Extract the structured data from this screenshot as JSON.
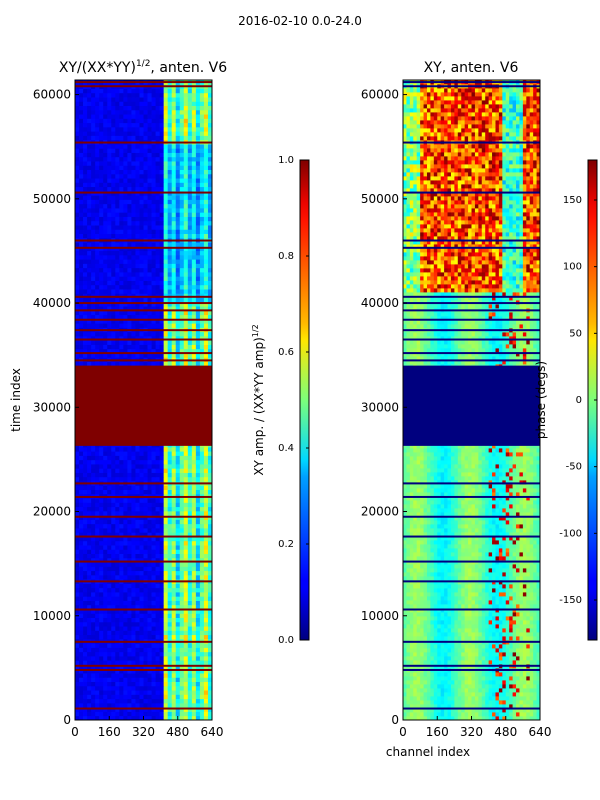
{
  "figure": {
    "suptitle": "2016-02-10 0.0-24.0"
  },
  "chart_data": [
    {
      "type": "heatmap",
      "title": "XY/(XX*YY)",
      "title_sup": "1/2",
      "title_suffix": ", anten. V6",
      "xlabel": "",
      "ylabel": "time index",
      "xlim": [
        0,
        640
      ],
      "ylim": [
        0,
        61400
      ],
      "xticks": [
        "0",
        "160",
        "320",
        "480",
        "640"
      ],
      "yticks": [
        "0",
        "10000",
        "20000",
        "30000",
        "40000",
        "50000",
        "60000"
      ],
      "colormap": "jet",
      "colorbar": {
        "label": "XY amp. / (XX*YY amp)",
        "label_sup": "1/2",
        "range": [
          0.0,
          1.0
        ],
        "ticks": [
          "0.0",
          "0.2",
          "0.4",
          "0.6",
          "0.8",
          "1.0"
        ]
      },
      "flagged_time_ranges": [
        [
          26300,
          34000
        ]
      ],
      "flag_lines_time_index": [
        1100,
        4800,
        5200,
        7500,
        10600,
        13300,
        15200,
        17600,
        19500,
        21400,
        22700,
        34500,
        35200,
        36500,
        37400,
        38400,
        39300,
        40000,
        40600,
        45300,
        46000,
        50600,
        55400,
        60800,
        61200
      ],
      "bright_channel_band": [
        415,
        640
      ]
    },
    {
      "type": "heatmap",
      "title": "XY, anten. V6",
      "xlabel": "channel index",
      "ylabel": "",
      "xlim": [
        0,
        640
      ],
      "ylim": [
        0,
        61400
      ],
      "xticks": [
        "0",
        "160",
        "320",
        "480",
        "640"
      ],
      "yticks": [
        "0",
        "10000",
        "20000",
        "30000",
        "40000",
        "50000",
        "60000"
      ],
      "colormap": "jet",
      "colorbar": {
        "label": "phase (degs)",
        "range": [
          -180,
          180
        ],
        "ticks": [
          "-150",
          "-100",
          "-50",
          "0",
          "50",
          "100",
          "150"
        ]
      },
      "flagged_time_ranges": [
        [
          26300,
          34000
        ]
      ],
      "flag_lines_time_index": [
        1100,
        4800,
        5200,
        7500,
        10600,
        13300,
        15200,
        17600,
        19500,
        21400,
        22700,
        34500,
        35200,
        36500,
        37400,
        38400,
        39300,
        40000,
        40600,
        45300,
        46000,
        50600,
        55400,
        60800,
        61200
      ]
    }
  ]
}
